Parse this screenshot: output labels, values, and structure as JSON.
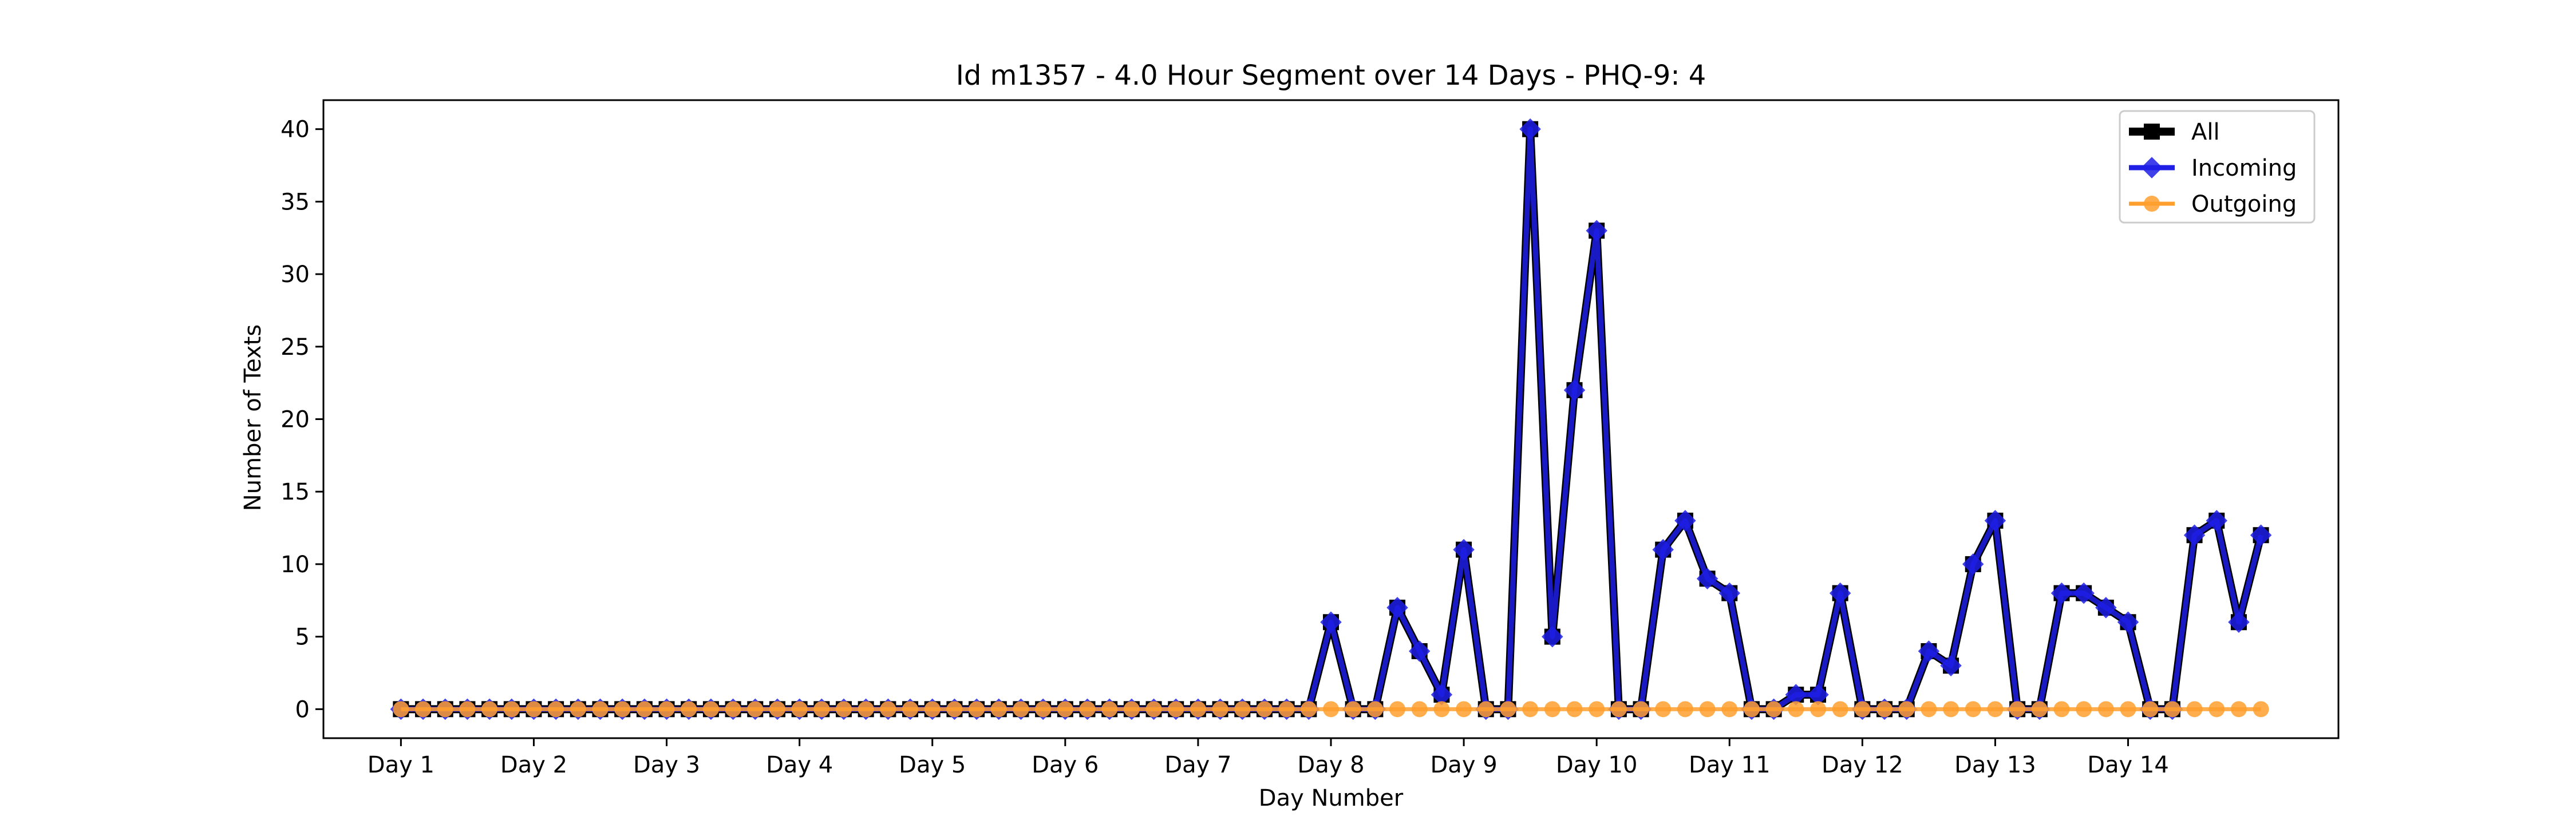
{
  "chart_data": {
    "type": "line",
    "title": "Id m1357 - 4.0 Hour Segment over 14 Days - PHQ-9: 4",
    "xlabel": "Day Number",
    "ylabel": "Number of Texts",
    "ylim": [
      -2,
      42
    ],
    "yticks": [
      0,
      5,
      10,
      15,
      20,
      25,
      30,
      35,
      40
    ],
    "xlim": [
      -3.5,
      87.5
    ],
    "xticks": [
      {
        "pos": 0,
        "label": "Day 1"
      },
      {
        "pos": 6,
        "label": "Day 2"
      },
      {
        "pos": 12,
        "label": "Day 3"
      },
      {
        "pos": 18,
        "label": "Day 4"
      },
      {
        "pos": 24,
        "label": "Day 5"
      },
      {
        "pos": 30,
        "label": "Day 6"
      },
      {
        "pos": 36,
        "label": "Day 7"
      },
      {
        "pos": 42,
        "label": "Day 8"
      },
      {
        "pos": 48,
        "label": "Day 9"
      },
      {
        "pos": 54,
        "label": "Day 10"
      },
      {
        "pos": 60,
        "label": "Day 11"
      },
      {
        "pos": 66,
        "label": "Day 12"
      },
      {
        "pos": 72,
        "label": "Day 13"
      },
      {
        "pos": 78,
        "label": "Day 14"
      }
    ],
    "legend_position": "top-right",
    "grid": false,
    "series": [
      {
        "name": "All",
        "color": "#000000",
        "marker": "square",
        "values": [
          0,
          0,
          0,
          0,
          0,
          0,
          0,
          0,
          0,
          0,
          0,
          0,
          0,
          0,
          0,
          0,
          0,
          0,
          0,
          0,
          0,
          0,
          0,
          0,
          0,
          0,
          0,
          0,
          0,
          0,
          0,
          0,
          0,
          0,
          0,
          0,
          0,
          0,
          0,
          0,
          0,
          0,
          6,
          0,
          0,
          7,
          4,
          1,
          11,
          0,
          0,
          40,
          5,
          22,
          33,
          0,
          0,
          11,
          13,
          9,
          8,
          0,
          0,
          1,
          1,
          8,
          0,
          0,
          0,
          4,
          3,
          10,
          13,
          0,
          0,
          8,
          8,
          7,
          6,
          0,
          0,
          12,
          13,
          6,
          12
        ]
      },
      {
        "name": "Incoming",
        "color": "#1f1fe6",
        "marker": "diamond",
        "values": [
          0,
          0,
          0,
          0,
          0,
          0,
          0,
          0,
          0,
          0,
          0,
          0,
          0,
          0,
          0,
          0,
          0,
          0,
          0,
          0,
          0,
          0,
          0,
          0,
          0,
          0,
          0,
          0,
          0,
          0,
          0,
          0,
          0,
          0,
          0,
          0,
          0,
          0,
          0,
          0,
          0,
          0,
          6,
          0,
          0,
          7,
          4,
          1,
          11,
          0,
          0,
          40,
          5,
          22,
          33,
          0,
          0,
          11,
          13,
          9,
          8,
          0,
          0,
          1,
          1,
          8,
          0,
          0,
          0,
          4,
          3,
          10,
          13,
          0,
          0,
          8,
          8,
          7,
          6,
          0,
          0,
          12,
          13,
          6,
          12
        ]
      },
      {
        "name": "Outgoing",
        "color": "#ff9f2e",
        "marker": "circle",
        "values": [
          0,
          0,
          0,
          0,
          0,
          0,
          0,
          0,
          0,
          0,
          0,
          0,
          0,
          0,
          0,
          0,
          0,
          0,
          0,
          0,
          0,
          0,
          0,
          0,
          0,
          0,
          0,
          0,
          0,
          0,
          0,
          0,
          0,
          0,
          0,
          0,
          0,
          0,
          0,
          0,
          0,
          0,
          0,
          0,
          0,
          0,
          0,
          0,
          0,
          0,
          0,
          0,
          0,
          0,
          0,
          0,
          0,
          0,
          0,
          0,
          0,
          0,
          0,
          0,
          0,
          0,
          0,
          0,
          0,
          0,
          0,
          0,
          0,
          0,
          0,
          0,
          0,
          0,
          0,
          0,
          0,
          0,
          0,
          0,
          0
        ]
      }
    ]
  }
}
